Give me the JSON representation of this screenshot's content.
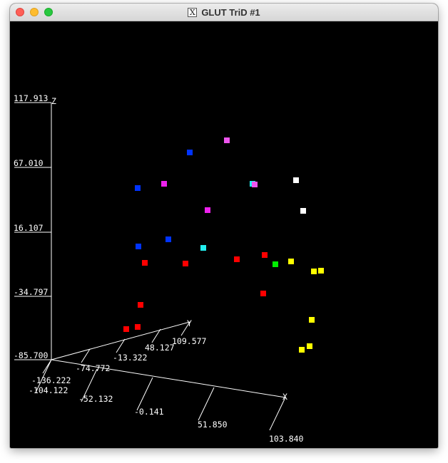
{
  "window": {
    "title": "GLUT TriD #1",
    "icon": "x11-icon"
  },
  "chart_data": {
    "type": "scatter",
    "z_axis": {
      "label": "Z",
      "ticks": [
        "117.913",
        "67.010",
        "16.107",
        "-34.797",
        "-85.700"
      ]
    },
    "y_axis": {
      "label": "Y",
      "ticks": [
        "-136.222",
        "-74.772",
        "-13.322",
        "48.127",
        "109.577"
      ]
    },
    "x_axis": {
      "label": "X",
      "ticks": [
        "-104.122",
        "-52.132",
        "-0.141",
        "51.850",
        "103.840"
      ]
    },
    "colors": {
      "red": "#ff0000",
      "blue": "#0033ff",
      "magenta": "#ee22ee",
      "cyan": "#22eeee",
      "white": "#ffffff",
      "yellow": "#ffff00",
      "green": "#00ee00"
    },
    "points": [
      {
        "color": "violet"
      },
      {
        "color": "blue"
      },
      {
        "color": "magenta"
      },
      {
        "color": "blue"
      },
      {
        "color": "cyan"
      },
      {
        "color": "violet"
      },
      {
        "color": "white"
      },
      {
        "color": "magenta"
      },
      {
        "color": "white"
      },
      {
        "color": "blue"
      },
      {
        "color": "blue"
      },
      {
        "color": "cyan"
      },
      {
        "color": "red"
      },
      {
        "color": "red"
      },
      {
        "color": "red"
      },
      {
        "color": "red"
      },
      {
        "color": "green"
      },
      {
        "color": "yellow"
      },
      {
        "color": "yellow"
      },
      {
        "color": "yellow"
      },
      {
        "color": "red"
      },
      {
        "color": "red"
      },
      {
        "color": "red"
      },
      {
        "color": "red"
      },
      {
        "color": "yellow"
      },
      {
        "color": "yellow"
      },
      {
        "color": "yellow"
      }
    ]
  }
}
